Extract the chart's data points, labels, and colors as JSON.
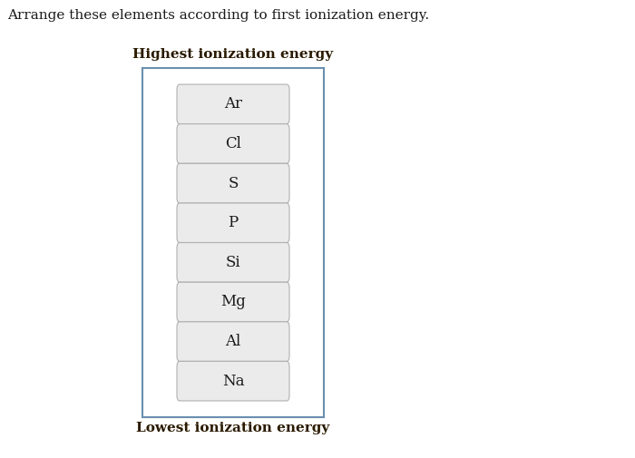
{
  "title": "Arrange these elements according to first ionization energy.",
  "highest_label": "Highest ionization energy",
  "lowest_label": "Lowest ionization energy",
  "elements": [
    "Ar",
    "Cl",
    "S",
    "P",
    "Si",
    "Mg",
    "Al",
    "Na"
  ],
  "background_color": "#ffffff",
  "title_fontsize": 11,
  "label_fontsize": 11,
  "element_fontsize": 12,
  "box_bg_color": "#ebebeb",
  "box_edge_color": "#b0b0b0",
  "container_edge_color": "#6a8faf",
  "container_bg_color": "#ffffff",
  "fig_width": 7.0,
  "fig_height": 5.05,
  "dpi": 100,
  "title_color": "#1a1a1a",
  "label_color": "#2a1a00",
  "element_color": "#1a1a1a"
}
